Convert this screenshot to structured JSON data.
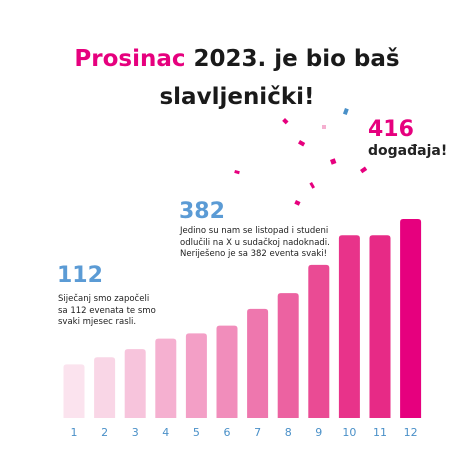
{
  "chart_data": {
    "type": "bar",
    "title_highlight": "Prosinac",
    "title": "2023. je bio baš slavljenički!",
    "categories": [
      "1",
      "2",
      "3",
      "4",
      "5",
      "6",
      "7",
      "8",
      "9",
      "10",
      "11",
      "12"
    ],
    "values": [
      112,
      127,
      144,
      166,
      177,
      193,
      228,
      261,
      320,
      382,
      382,
      416
    ],
    "colors": [
      "#fbe3ee",
      "#f9d6e6",
      "#f7c4dc",
      "#f5b0d0",
      "#f39fc6",
      "#f18dbb",
      "#ee77ae",
      "#ec62a1",
      "#ea4b94",
      "#e8338a",
      "#e72a86",
      "#e6007e"
    ],
    "annotations": [
      {
        "value_index": 0,
        "text": "Siječanj smo započeli sa 112 evenata te smo svaki mjesec rasli."
      },
      {
        "value_index": 9,
        "text": "Jedino su nam se listopad i studeni odlučili na X u sudačkoj nadoknadi. Neriješeno je sa 382 eventa svaki!"
      },
      {
        "value_index": 11,
        "text": "događaja!"
      }
    ]
  }
}
